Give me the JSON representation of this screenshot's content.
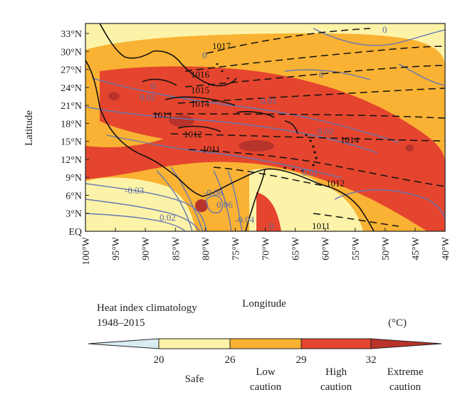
{
  "map": {
    "lat_labels": [
      "33°N",
      "30°N",
      "27°N",
      "24°N",
      "21°N",
      "18°N",
      "15°N",
      "12°N",
      "9°N",
      "6°N",
      "3°N",
      "EQ"
    ],
    "lon_labels": [
      "100°W",
      "95°W",
      "90°W",
      "85°W",
      "80°W",
      "75°W",
      "70°W",
      "65°W",
      "60°W",
      "55°W",
      "50°W",
      "45°W",
      "40°W"
    ],
    "ylabel": "Latitude",
    "xlabel": "Longitude",
    "pressure_labels": [
      "1017",
      "1016",
      "1015",
      "1014",
      "1013",
      "1012",
      "1011",
      "1014",
      "1012",
      "1011"
    ],
    "wind_labels": [
      "0",
      "0",
      "0",
      "0.01",
      "0.01",
      "0",
      "0.02",
      "0.01",
      "-0.03",
      "0.02",
      "-0.08",
      "0.06",
      "-0.04",
      "0"
    ],
    "colors": {
      "below_20": "#d9ecf4",
      "safe": "#fdf3a8",
      "low_caution": "#f9b233",
      "high_caution": "#e5452e",
      "extreme_caution": "#b8332a",
      "land": "#fdf3a8",
      "wind_contour": "#6677b3",
      "pressure_contour": "#111111"
    }
  },
  "legend": {
    "title_line1": "Heat index climatology",
    "title_line2": "1948–2015",
    "unit": "(°C)",
    "ticks": [
      "20",
      "26",
      "29",
      "32"
    ],
    "categories": [
      "Safe",
      "Low\ncaution",
      "High\ncaution",
      "Extreme\ncaution"
    ]
  }
}
